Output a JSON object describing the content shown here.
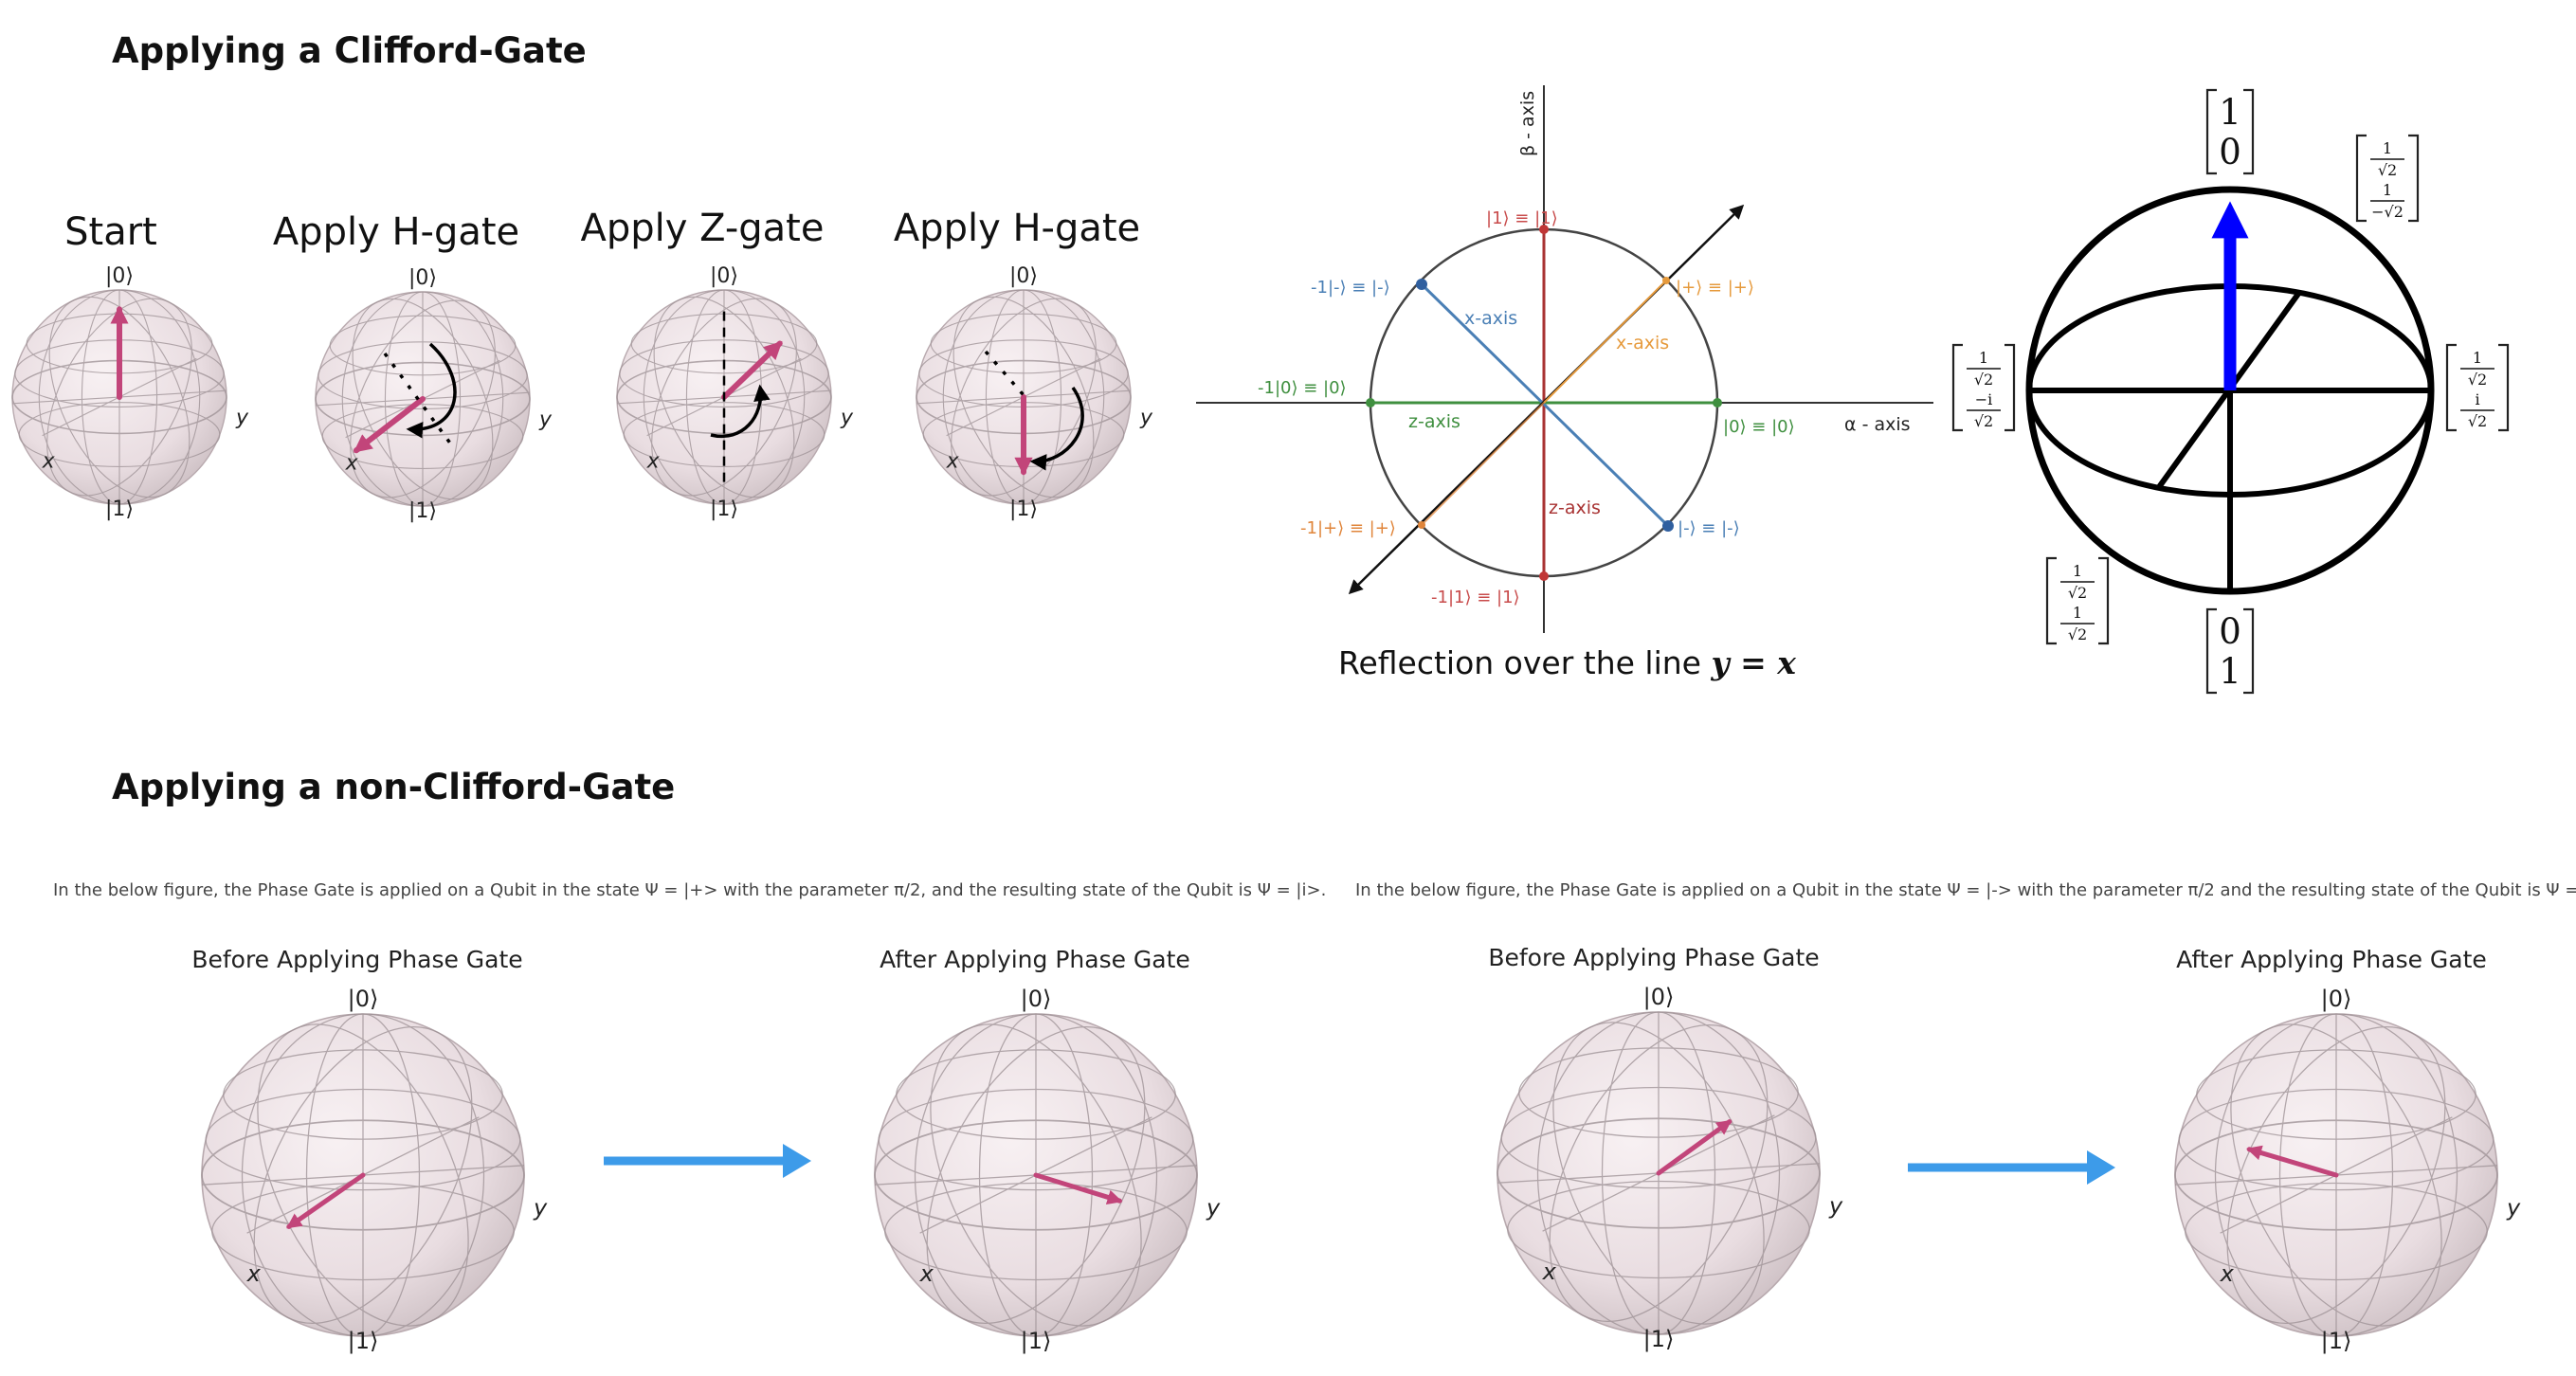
{
  "clifford": {
    "heading": "Applying a Clifford-Gate",
    "steps": [
      "Start",
      "Apply H-gate",
      "Apply Z-gate",
      "Apply H-gate"
    ],
    "sphere_labels": {
      "top": "|0⟩",
      "bottom": "|1⟩",
      "x": "x",
      "y": "y"
    },
    "reflection": {
      "caption_prefix": "Reflection over the line ",
      "caption_math": "y = x",
      "beta_axis": "β - axis",
      "alpha_axis": "α - axis",
      "x_axis": "x-axis",
      "z_axis": "z-axis",
      "points": {
        "p_one": "|1⟩ ≡ |1⟩",
        "p_minus_neg": "-1|-⟩ ≡ |-⟩",
        "p_plus": "|+⟩ ≡ |+⟩",
        "p_zero_neg": "-1|0⟩ ≡ |0⟩",
        "p_zero": "|0⟩ ≡ |0⟩",
        "p_plus_neg": "-1|+⟩ ≡ |+⟩",
        "p_minus": "|-⟩ ≡ |-⟩",
        "p_one_neg": "-1|1⟩ ≡ |1⟩"
      }
    },
    "matrices": {
      "top": [
        "1",
        "0"
      ],
      "bottom": [
        "0",
        "1"
      ],
      "top_right": [
        "1",
        "√2",
        "1",
        "−√2"
      ],
      "left": [
        "1",
        "√2",
        "−i",
        "√2"
      ],
      "right": [
        "1",
        "√2",
        "i",
        "√2"
      ],
      "bottom_left": [
        "1",
        "√2",
        "1",
        "√2"
      ]
    }
  },
  "non_clifford": {
    "heading": "Applying a non-Clifford-Gate",
    "left_panel": {
      "description": "In the below figure, the Phase Gate is applied on a Qubit in the state Ψ = |+> with the parameter π/2, and the resulting state of the Qubit is Ψ = |i>.",
      "before_title": "Before Applying Phase Gate",
      "after_title": "After Applying Phase Gate"
    },
    "right_panel": {
      "description": "In the below figure, the Phase Gate is applied on a Qubit in the state Ψ = |-> with the parameter π/2 and the resulting state of the Qubit is Ψ = |-i>.",
      "before_title": "Before Applying Phase Gate",
      "after_title": "After Applying Phase Gate"
    }
  },
  "colors": {
    "state_arrow": "#c2457a",
    "transition_arrow": "#3d9be9",
    "blue_vector": "#0000ff",
    "x_axis_line": "#4a7fb5",
    "alpha_line": "#3f8f3f",
    "beta_line": "#a83232",
    "diag_line": "#111111"
  }
}
